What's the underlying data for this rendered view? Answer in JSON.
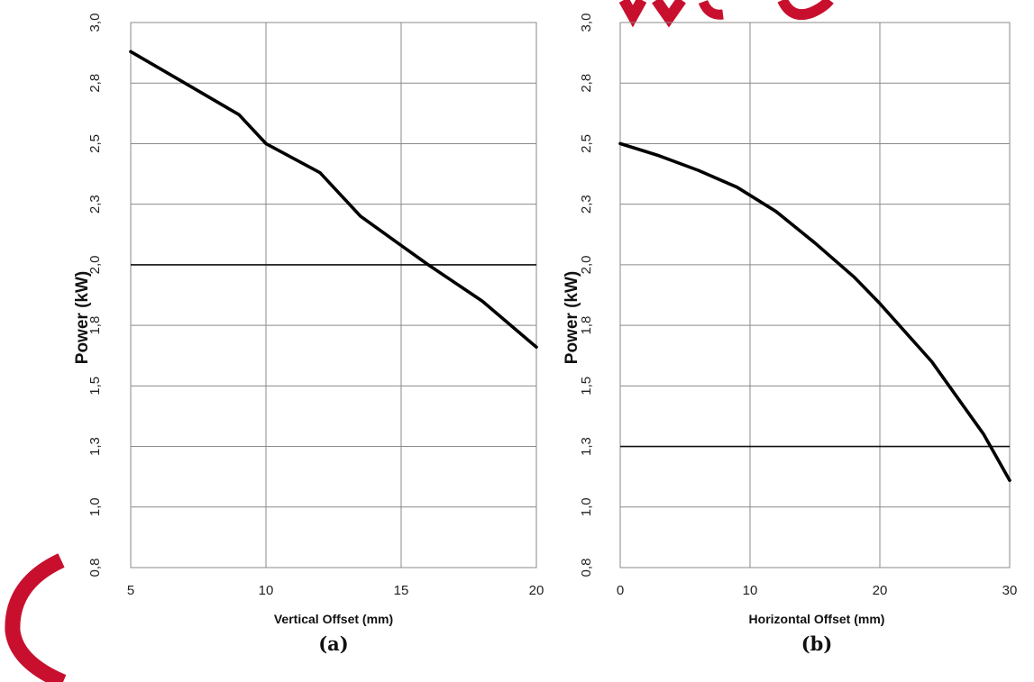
{
  "chart_data": [
    {
      "type": "line",
      "panel_label": "(a)",
      "xlabel": "Vertical Offset (mm)",
      "ylabel": "Power (kW)",
      "xlim": [
        5,
        20
      ],
      "ylim": [
        0.75,
        3.0
      ],
      "x_ticks": [
        5,
        10,
        15,
        20
      ],
      "x_tick_labels": [
        "5",
        "10",
        "15",
        "20"
      ],
      "y_ticks": [
        0.75,
        1.0,
        1.25,
        1.5,
        1.75,
        2.0,
        2.25,
        2.5,
        2.75,
        3.0
      ],
      "y_tick_labels": [
        "0,8",
        "1,0",
        "1,3",
        "1,5",
        "1,8",
        "2,0",
        "2,3",
        "2,5",
        "2,8",
        "3,0"
      ],
      "grid": true,
      "reference_line_y": 2.0,
      "series": [
        {
          "x": [
            5,
            7,
            9,
            10,
            12,
            13.5,
            15,
            16,
            18,
            20
          ],
          "values": [
            2.88,
            2.75,
            2.62,
            2.5,
            2.38,
            2.2,
            2.08,
            2.0,
            1.85,
            1.66
          ]
        }
      ]
    },
    {
      "type": "line",
      "panel_label": "(b)",
      "xlabel": "Horizontal Offset (mm)",
      "ylabel": "Power (kW)",
      "xlim": [
        0,
        30
      ],
      "ylim": [
        0.75,
        3.0
      ],
      "x_ticks": [
        0,
        10,
        20,
        30
      ],
      "x_tick_labels": [
        "0",
        "10",
        "20",
        "30"
      ],
      "y_ticks": [
        0.75,
        1.0,
        1.25,
        1.5,
        1.75,
        2.0,
        2.25,
        2.5,
        2.75,
        3.0
      ],
      "y_tick_labels": [
        "0,8",
        "1,0",
        "1,3",
        "1,5",
        "1,8",
        "2,0",
        "2,3",
        "2,5",
        "2,8",
        "3,0"
      ],
      "grid": true,
      "reference_line_y": 1.25,
      "series": [
        {
          "x": [
            0,
            3,
            6,
            9,
            12,
            15,
            18,
            20,
            22,
            24,
            26,
            28,
            30
          ],
          "values": [
            2.5,
            2.45,
            2.39,
            2.32,
            2.22,
            2.09,
            1.95,
            1.84,
            1.72,
            1.6,
            1.45,
            1.3,
            1.11
          ]
        }
      ]
    }
  ],
  "colors": {
    "curve": "#000000",
    "grid": "#8a8a8a",
    "reference_line": "#111111",
    "logo": "#c8102e"
  },
  "decorations": {
    "top_logo": "red-watermark-logo",
    "left_logo": "red-arc-logo"
  }
}
